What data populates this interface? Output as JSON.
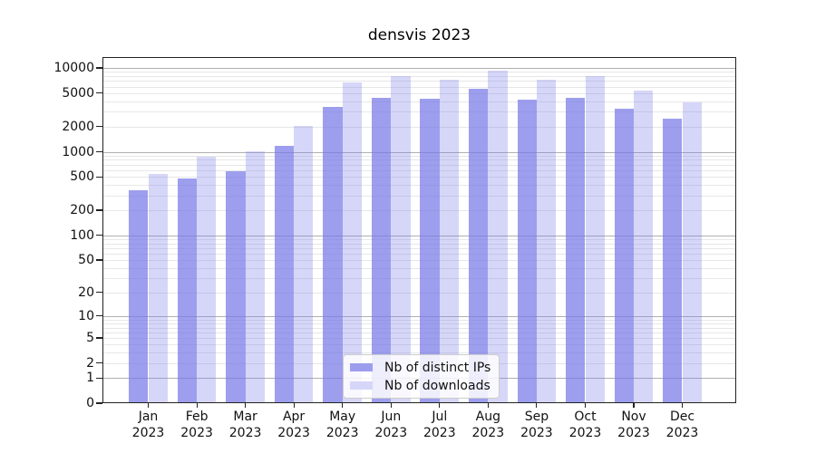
{
  "title": "densvis 2023",
  "chart_data": {
    "type": "bar",
    "title": "densvis 2023",
    "categories": [
      "Jan 2023",
      "Feb 2023",
      "Mar 2023",
      "Apr 2023",
      "May 2023",
      "Jun 2023",
      "Jul 2023",
      "Aug 2023",
      "Sep 2023",
      "Oct 2023",
      "Nov 2023",
      "Dec 2023"
    ],
    "x_tick_month": [
      "Jan",
      "Feb",
      "Mar",
      "Apr",
      "May",
      "Jun",
      "Jul",
      "Aug",
      "Sep",
      "Oct",
      "Nov",
      "Dec"
    ],
    "x_tick_year": "2023",
    "series": [
      {
        "name": "Nb of distinct IPs",
        "color": "#9d9dee",
        "fill_rgba": "rgba(120,120,232,0.72)",
        "values": [
          350,
          480,
          590,
          1180,
          3450,
          4400,
          4300,
          5600,
          4200,
          4400,
          3300,
          2500
        ]
      },
      {
        "name": "Nb of downloads",
        "color": "#d6d6f8",
        "fill_rgba": "rgba(120,120,232,0.30)",
        "values": [
          545,
          880,
          1020,
          2020,
          6800,
          8000,
          7200,
          9300,
          7300,
          8000,
          5400,
          3900
        ]
      }
    ],
    "yscale": "log-like: y = log10(value+1)",
    "yticks": [
      0,
      1,
      2,
      5,
      10,
      20,
      50,
      100,
      200,
      500,
      1000,
      2000,
      5000,
      10000
    ],
    "y_tick_labels": [
      "0",
      "1",
      "2",
      "5",
      "10",
      "20",
      "50",
      "100",
      "200",
      "500",
      "1000",
      "2000",
      "5000",
      "10000"
    ],
    "ylim": [
      0,
      13500
    ],
    "grid": {
      "major_lines": [
        1,
        10,
        100,
        1000,
        10000
      ],
      "major_color": "#b0b0b0",
      "minor_color": "#e7e7e7"
    },
    "legend": {
      "position": "lower center",
      "entries": [
        "Nb of distinct IPs",
        "Nb of downloads"
      ]
    }
  }
}
